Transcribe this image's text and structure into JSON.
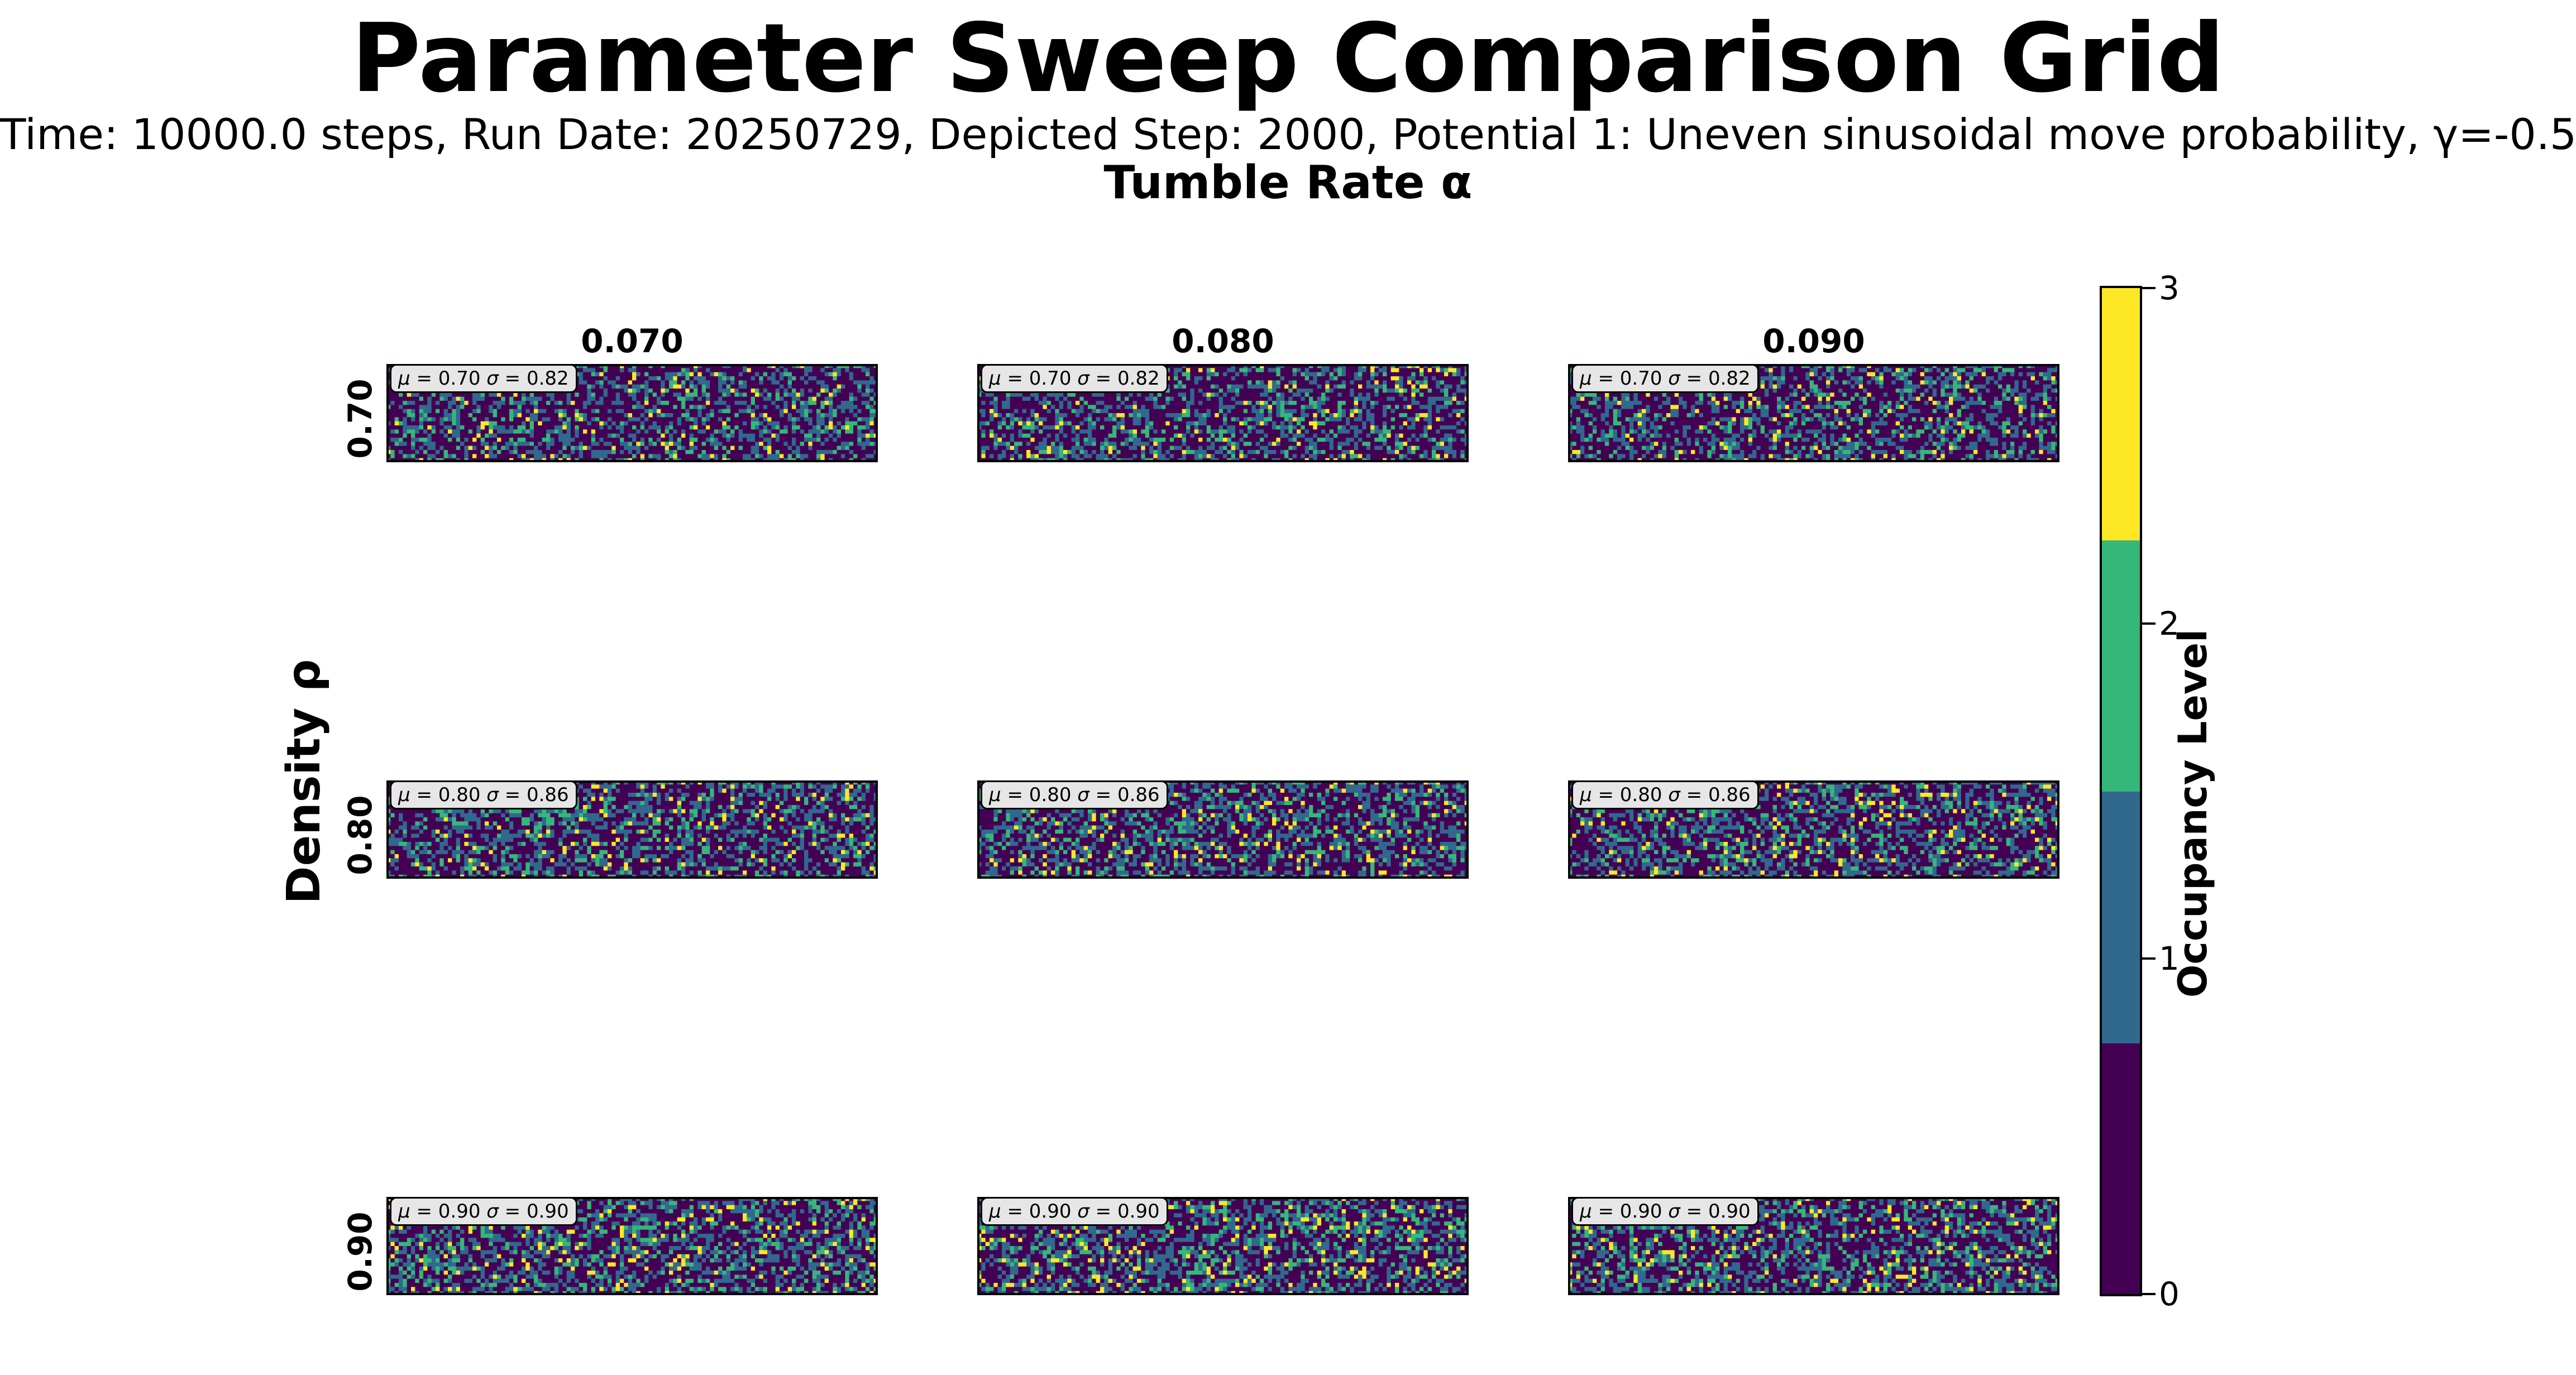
{
  "chart_data": {
    "type": "heatmap",
    "title": "Parameter Sweep Comparison Grid",
    "subtitle": "Time: 10000.0 steps, Run Date: 20250729, Depicted Step: 2000, Potential 1: Uneven sinusoidal move probability, γ=-0.5",
    "col_axis_label": "Tumble Rate α",
    "row_axis_label": "Density ρ",
    "columns": [
      "0.070",
      "0.080",
      "0.090"
    ],
    "rows": [
      "0.70",
      "0.80",
      "0.90"
    ],
    "panels": [
      {
        "row": "0.70",
        "col": "0.070",
        "mu": "0.70",
        "sigma": "0.82"
      },
      {
        "row": "0.70",
        "col": "0.080",
        "mu": "0.70",
        "sigma": "0.82"
      },
      {
        "row": "0.70",
        "col": "0.090",
        "mu": "0.70",
        "sigma": "0.82"
      },
      {
        "row": "0.80",
        "col": "0.070",
        "mu": "0.80",
        "sigma": "0.86"
      },
      {
        "row": "0.80",
        "col": "0.080",
        "mu": "0.80",
        "sigma": "0.86"
      },
      {
        "row": "0.80",
        "col": "0.090",
        "mu": "0.80",
        "sigma": "0.86"
      },
      {
        "row": "0.90",
        "col": "0.070",
        "mu": "0.90",
        "sigma": "0.90"
      },
      {
        "row": "0.90",
        "col": "0.080",
        "mu": "0.90",
        "sigma": "0.90"
      },
      {
        "row": "0.90",
        "col": "0.090",
        "mu": "0.90",
        "sigma": "0.90"
      }
    ],
    "colorbar": {
      "label": "Occupancy Level",
      "range": [
        0,
        3
      ],
      "ticks": [
        "0",
        "1",
        "2",
        "3"
      ],
      "levels": [
        {
          "value": 0,
          "color": "#440154"
        },
        {
          "value": 1,
          "color": "#31688e"
        },
        {
          "value": 2,
          "color": "#35b779"
        },
        {
          "value": 3,
          "color": "#fde725"
        }
      ]
    }
  }
}
